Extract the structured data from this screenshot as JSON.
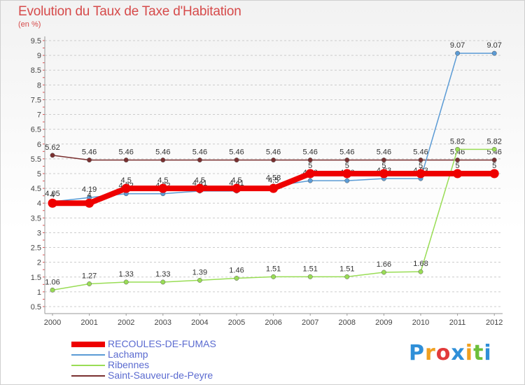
{
  "chart_data": {
    "type": "line",
    "title": "Evolution du Taux de Taxe d'Habitation",
    "subtitle": "(en %)",
    "x": [
      "2000",
      "2001",
      "2002",
      "2003",
      "2004",
      "2005",
      "2006",
      "2007",
      "2008",
      "2009",
      "2010",
      "2011",
      "2012"
    ],
    "ylim": [
      0.5,
      9.5
    ],
    "yticks": [
      "0.5",
      "1",
      "1.5",
      "2",
      "2.5",
      "3",
      "3.5",
      "4",
      "4.5",
      "5",
      "5.5",
      "6",
      "6.5",
      "7",
      "7.5",
      "8",
      "8.5",
      "9",
      "9.5"
    ],
    "grid": "horizontal dashed",
    "legend_position": "bottom-left",
    "series": [
      {
        "name": "RECOULES-DE-FUMAS",
        "color": "#ee0000",
        "values": [
          4,
          4,
          4.5,
          4.5,
          4.5,
          4.5,
          4.5,
          5,
          5,
          5,
          5,
          5,
          5
        ],
        "labels": [
          "4",
          "4",
          "4.5",
          "4.5",
          "4.5",
          "4.5",
          "4.5",
          "5",
          "5",
          "5",
          "5",
          "5",
          "5"
        ]
      },
      {
        "name": "Lachamp",
        "color": "#5b9bd5",
        "values": [
          4.05,
          4.19,
          4.32,
          4.32,
          4.41,
          4.41,
          4.58,
          4.76,
          4.76,
          4.83,
          4.83,
          9.07,
          9.07
        ],
        "labels": [
          "4.05",
          "4.19",
          "4.32",
          "4.32",
          "4.41",
          "4.41",
          "4.58",
          "4.76",
          "4.76",
          "4.83",
          "4.83",
          "9.07",
          "9.07"
        ]
      },
      {
        "name": "Ribennes",
        "color": "#99dd55",
        "values": [
          1.06,
          1.27,
          1.33,
          1.33,
          1.39,
          1.46,
          1.51,
          1.51,
          1.51,
          1.66,
          1.68,
          5.82,
          5.82
        ],
        "labels": [
          "1.06",
          "1.27",
          "1.33",
          "1.33",
          "1.39",
          "1.46",
          "1.51",
          "1.51",
          "1.51",
          "1.66",
          "1.68",
          "5.82",
          "5.82"
        ]
      },
      {
        "name": "Saint-Sauveur-de-Peyre",
        "color": "#7a3030",
        "values": [
          5.62,
          5.46,
          5.46,
          5.46,
          5.46,
          5.46,
          5.46,
          5.46,
          5.46,
          5.46,
          5.46,
          5.46,
          5.46
        ],
        "labels": [
          "5.62",
          "5.46",
          "5.46",
          "5.46",
          "5.46",
          "5.46",
          "5.46",
          "5.46",
          "5.46",
          "5.46",
          "5.46",
          "5.46",
          "5.46"
        ]
      }
    ]
  },
  "logo": {
    "letters": [
      "P",
      "r",
      "o",
      "x",
      "i",
      "t",
      "i"
    ],
    "colors": [
      "#2f8fd8",
      "#f0a020",
      "#e23a3a",
      "#2f8fd8",
      "#f0a020",
      "#6cbf3a",
      "#2f8fd8"
    ]
  }
}
